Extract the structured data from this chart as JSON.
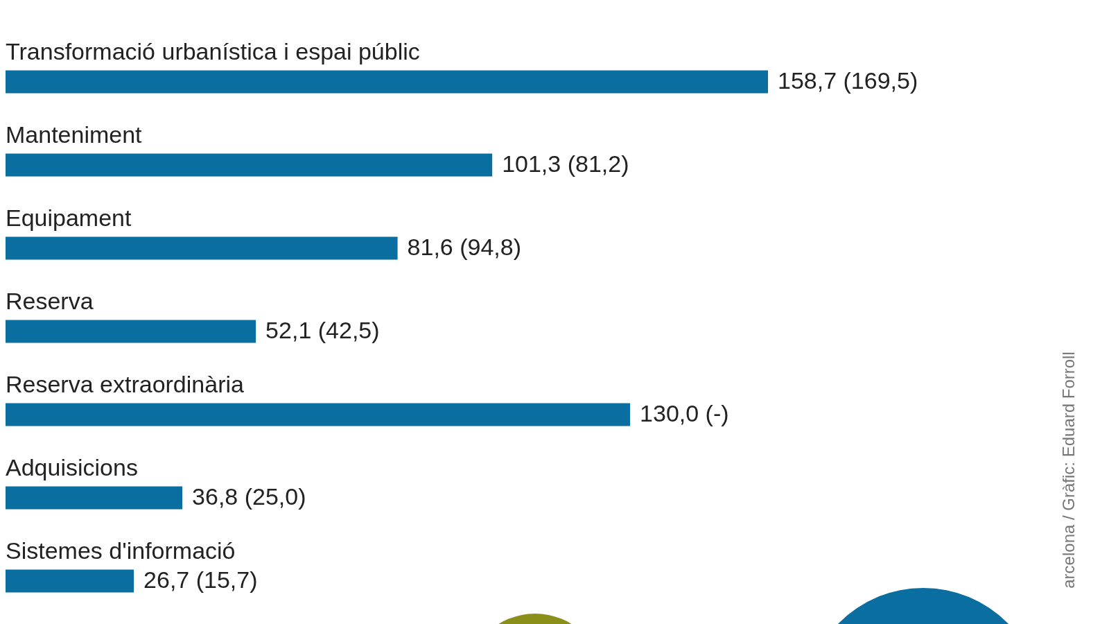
{
  "chart_data": {
    "type": "bar",
    "orientation": "horizontal",
    "color": "#0a6ea0",
    "categories": [
      "Transformació urbanística i espai públic",
      "Manteniment",
      "Equipament",
      "Reserva",
      "Reserva extraordinària",
      "Adquisicions",
      "Sistemes d'informació"
    ],
    "values": [
      158.7,
      101.3,
      81.6,
      52.1,
      130.0,
      36.8,
      26.7
    ],
    "value_labels": [
      "158,7 (169,5)",
      "101,3 (81,2)",
      "81,6 (94,8)",
      "52,1 (42,5)",
      "130,0 (-)",
      "36,8 (25,0)",
      "26,7 (15,7)"
    ],
    "annotations": [
      "arcelona / Gràfic: Eduard Forroll"
    ]
  }
}
